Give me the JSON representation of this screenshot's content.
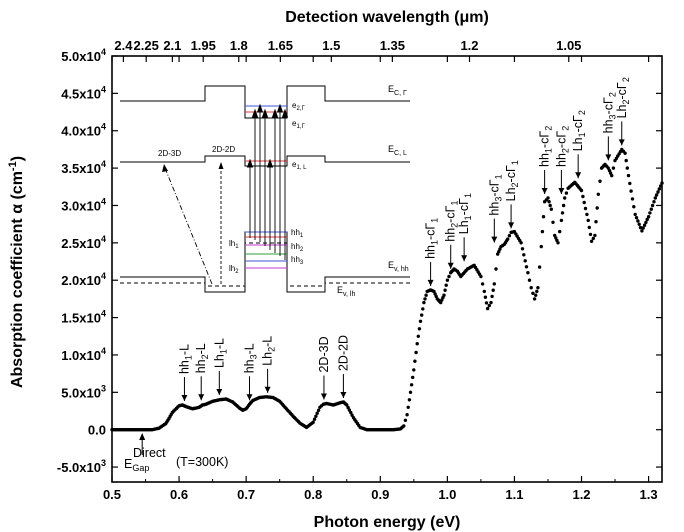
{
  "chart_data": {
    "type": "scatter",
    "xlabel": "Photon energy (eV)",
    "ylabel": "Absorption coefficient α (cm",
    "ylabel_sup": "-1",
    "ylabel_end": ")",
    "top_axis_label": "Detection wavelength (μm)",
    "xlim": [
      0.5,
      1.32
    ],
    "ylim": [
      -7000,
      50000
    ],
    "x_ticks": [
      {
        "value": 0.5,
        "label": "0.5"
      },
      {
        "value": 0.6,
        "label": "0.6"
      },
      {
        "value": 0.7,
        "label": "0.7"
      },
      {
        "value": 0.8,
        "label": "0.8"
      },
      {
        "value": 0.9,
        "label": "0.9"
      },
      {
        "value": 1.0,
        "label": "1.0"
      },
      {
        "value": 1.1,
        "label": "1.1"
      },
      {
        "value": 1.2,
        "label": "1.2"
      },
      {
        "value": 1.3,
        "label": "1.3"
      }
    ],
    "y_ticks": [
      {
        "value": -5000,
        "label": "-5.0x10",
        "exp": "3"
      },
      {
        "value": 0,
        "label": "0.0",
        "exp": ""
      },
      {
        "value": 5000,
        "label": "5.0x10",
        "exp": "3"
      },
      {
        "value": 10000,
        "label": "1.0x10",
        "exp": "4"
      },
      {
        "value": 15000,
        "label": "1.5x10",
        "exp": "4"
      },
      {
        "value": 20000,
        "label": "2.0x10",
        "exp": "4"
      },
      {
        "value": 25000,
        "label": "2.5x10",
        "exp": "4"
      },
      {
        "value": 30000,
        "label": "3.0x10",
        "exp": "4"
      },
      {
        "value": 35000,
        "label": "3.5x10",
        "exp": "4"
      },
      {
        "value": 40000,
        "label": "4.0x10",
        "exp": "4"
      },
      {
        "value": 45000,
        "label": "4.5x10",
        "exp": "4"
      },
      {
        "value": 50000,
        "label": "5.0x10",
        "exp": "4"
      }
    ],
    "top_ticks": [
      {
        "label": "2.4",
        "energy": 0.517
      },
      {
        "label": "2.25",
        "energy": 0.551
      },
      {
        "label": "2.1",
        "energy": 0.59
      },
      {
        "label": "1.95",
        "energy": 0.636
      },
      {
        "label": "1.8",
        "energy": 0.689
      },
      {
        "label": "1.65",
        "energy": 0.751
      },
      {
        "label": "1.5",
        "energy": 0.827
      },
      {
        "label": "1.35",
        "energy": 0.918
      },
      {
        "label": "1.2",
        "energy": 1.033
      },
      {
        "label": "1.05",
        "energy": 1.181
      }
    ],
    "series": [
      {
        "marker": "dot",
        "color": "#000000",
        "x": [
          0.5,
          0.52,
          0.54,
          0.56,
          0.57,
          0.58,
          0.585,
          0.59,
          0.6,
          0.605,
          0.61,
          0.62,
          0.63,
          0.635,
          0.64,
          0.65,
          0.66,
          0.67,
          0.68,
          0.69,
          0.695,
          0.7,
          0.705,
          0.71,
          0.72,
          0.73,
          0.74,
          0.75,
          0.76,
          0.77,
          0.78,
          0.79,
          0.8,
          0.81,
          0.815,
          0.82,
          0.83,
          0.84,
          0.845,
          0.85,
          0.86,
          0.87,
          0.88,
          0.9,
          0.92,
          0.93,
          0.935,
          0.94,
          0.945,
          0.95,
          0.955,
          0.96,
          0.965,
          0.97,
          0.975,
          0.98,
          0.985,
          0.99,
          0.995,
          1.0,
          1.005,
          1.01,
          1.015,
          1.02,
          1.03,
          1.04,
          1.05,
          1.055,
          1.06,
          1.065,
          1.07,
          1.075,
          1.08,
          1.085,
          1.09,
          1.095,
          1.1,
          1.11,
          1.12,
          1.125,
          1.13,
          1.135,
          1.14,
          1.145,
          1.15,
          1.155,
          1.16,
          1.165,
          1.17,
          1.175,
          1.18,
          1.19,
          1.2,
          1.21,
          1.215,
          1.22,
          1.225,
          1.23,
          1.235,
          1.24,
          1.245,
          1.25,
          1.26,
          1.265,
          1.27,
          1.28,
          1.29,
          1.3,
          1.31,
          1.32
        ],
        "y": [
          0,
          0,
          0,
          0,
          200,
          800,
          1500,
          2300,
          3200,
          3300,
          3100,
          2800,
          3000,
          3300,
          3400,
          3800,
          4000,
          4100,
          3700,
          2900,
          2600,
          2800,
          3400,
          3900,
          4300,
          4400,
          4300,
          3800,
          2800,
          1800,
          900,
          300,
          1000,
          3000,
          3400,
          3500,
          3300,
          3600,
          3700,
          3300,
          1600,
          300,
          0,
          0,
          0,
          100,
          500,
          2000,
          5000,
          8000,
          11500,
          14500,
          17000,
          18500,
          18700,
          18500,
          17500,
          17000,
          18000,
          20000,
          21000,
          21500,
          21200,
          20500,
          21500,
          22000,
          20500,
          18500,
          16200,
          17000,
          19500,
          23500,
          24500,
          24800,
          25500,
          26400,
          26500,
          25000,
          21000,
          19000,
          17500,
          19000,
          24500,
          30500,
          31000,
          29500,
          26000,
          25000,
          28000,
          31000,
          32300,
          33100,
          32000,
          28000,
          25200,
          26000,
          31500,
          35000,
          35500,
          35000,
          34000,
          36000,
          37500,
          37000,
          34000,
          28800,
          26600,
          28500,
          31000,
          33000
        ]
      }
    ],
    "peak_labels": [
      {
        "text": "hh",
        "sub": "1",
        "tail": "-L",
        "x": 0.608,
        "y": 3300
      },
      {
        "text": "hh",
        "sub": "2",
        "tail": "-L",
        "x": 0.633,
        "y": 3400
      },
      {
        "text": "Lh",
        "sub": "1",
        "tail": "-L",
        "x": 0.66,
        "y": 4100
      },
      {
        "text": "hh",
        "sub": "3",
        "tail": "-L",
        "x": 0.705,
        "y": 3400
      },
      {
        "text": "Lh",
        "sub": "2",
        "tail": "-L",
        "x": 0.732,
        "y": 4400
      },
      {
        "text": "2D-3D",
        "sub": "",
        "tail": "",
        "x": 0.816,
        "y": 3500
      },
      {
        "text": "2D-2D",
        "sub": "",
        "tail": "",
        "x": 0.845,
        "y": 3700
      },
      {
        "text": "hh",
        "sub": "1",
        "tail": "-cΓ",
        "tail_sub": "1",
        "x": 0.975,
        "y": 18700
      },
      {
        "text": "hh",
        "sub": "2",
        "tail": "-cΓ",
        "tail_sub": "1",
        "x": 1.005,
        "y": 21000
      },
      {
        "text": "Lh",
        "sub": "1",
        "tail": "-cΓ",
        "tail_sub": "1",
        "x": 1.025,
        "y": 22000
      },
      {
        "text": "hh",
        "sub": "3",
        "tail": "-cΓ",
        "tail_sub": "1",
        "x": 1.07,
        "y": 24500
      },
      {
        "text": "Lh",
        "sub": "2",
        "tail": "-cΓ",
        "tail_sub": "1",
        "x": 1.095,
        "y": 26400
      },
      {
        "text": "hh",
        "sub": "1",
        "tail": "-cΓ",
        "tail_sub": "2",
        "x": 1.145,
        "y": 31000
      },
      {
        "text": "hh",
        "sub": "2",
        "tail": "-cΓ",
        "tail_sub": "2",
        "x": 1.17,
        "y": 31000
      },
      {
        "text": "Lh",
        "sub": "1",
        "tail": "-cΓ",
        "tail_sub": "2",
        "x": 1.195,
        "y": 33100
      },
      {
        "text": "hh",
        "sub": "3",
        "tail": "-cΓ",
        "tail_sub": "2",
        "x": 1.24,
        "y": 35500
      },
      {
        "text": "Lh",
        "sub": "2",
        "tail": "-cΓ",
        "tail_sub": "2",
        "x": 1.26,
        "y": 37500
      }
    ],
    "egap_label": {
      "main": "E",
      "sub": "Gap",
      "sup": "Direct",
      "tail": "(T=300K)",
      "energy": 0.545
    },
    "inset": {
      "labels": {
        "ec_gamma": "E",
        "ec_gamma_sub": "C, Γ",
        "ec_l": "E",
        "ec_l_sub": "C, L",
        "ev_hh": "E",
        "ev_hh_sub": "v, hh",
        "ev_lh": "E",
        "ev_lh_sub": "v, lh",
        "e2g": "e",
        "e2g_sub": "2,Γ",
        "e1g": "e",
        "e1g_sub": "1,Γ",
        "e1l": "e",
        "e1l_sub": "1, L",
        "hh1": "hh",
        "hh1_sub": "1",
        "hh2": "hh",
        "hh2_sub": "2",
        "hh3": "hh",
        "hh3_sub": "3",
        "lh1": "lh",
        "lh1_sub": "1",
        "lh2": "lh",
        "lh2_sub": "2",
        "t23d": "2D-3D",
        "t22d": "2D-2D"
      },
      "level_colors": {
        "blue": "#3d56d8",
        "red": "#e0383a",
        "magenta": "#c03ad0",
        "green": "#2e9e3c"
      }
    }
  }
}
